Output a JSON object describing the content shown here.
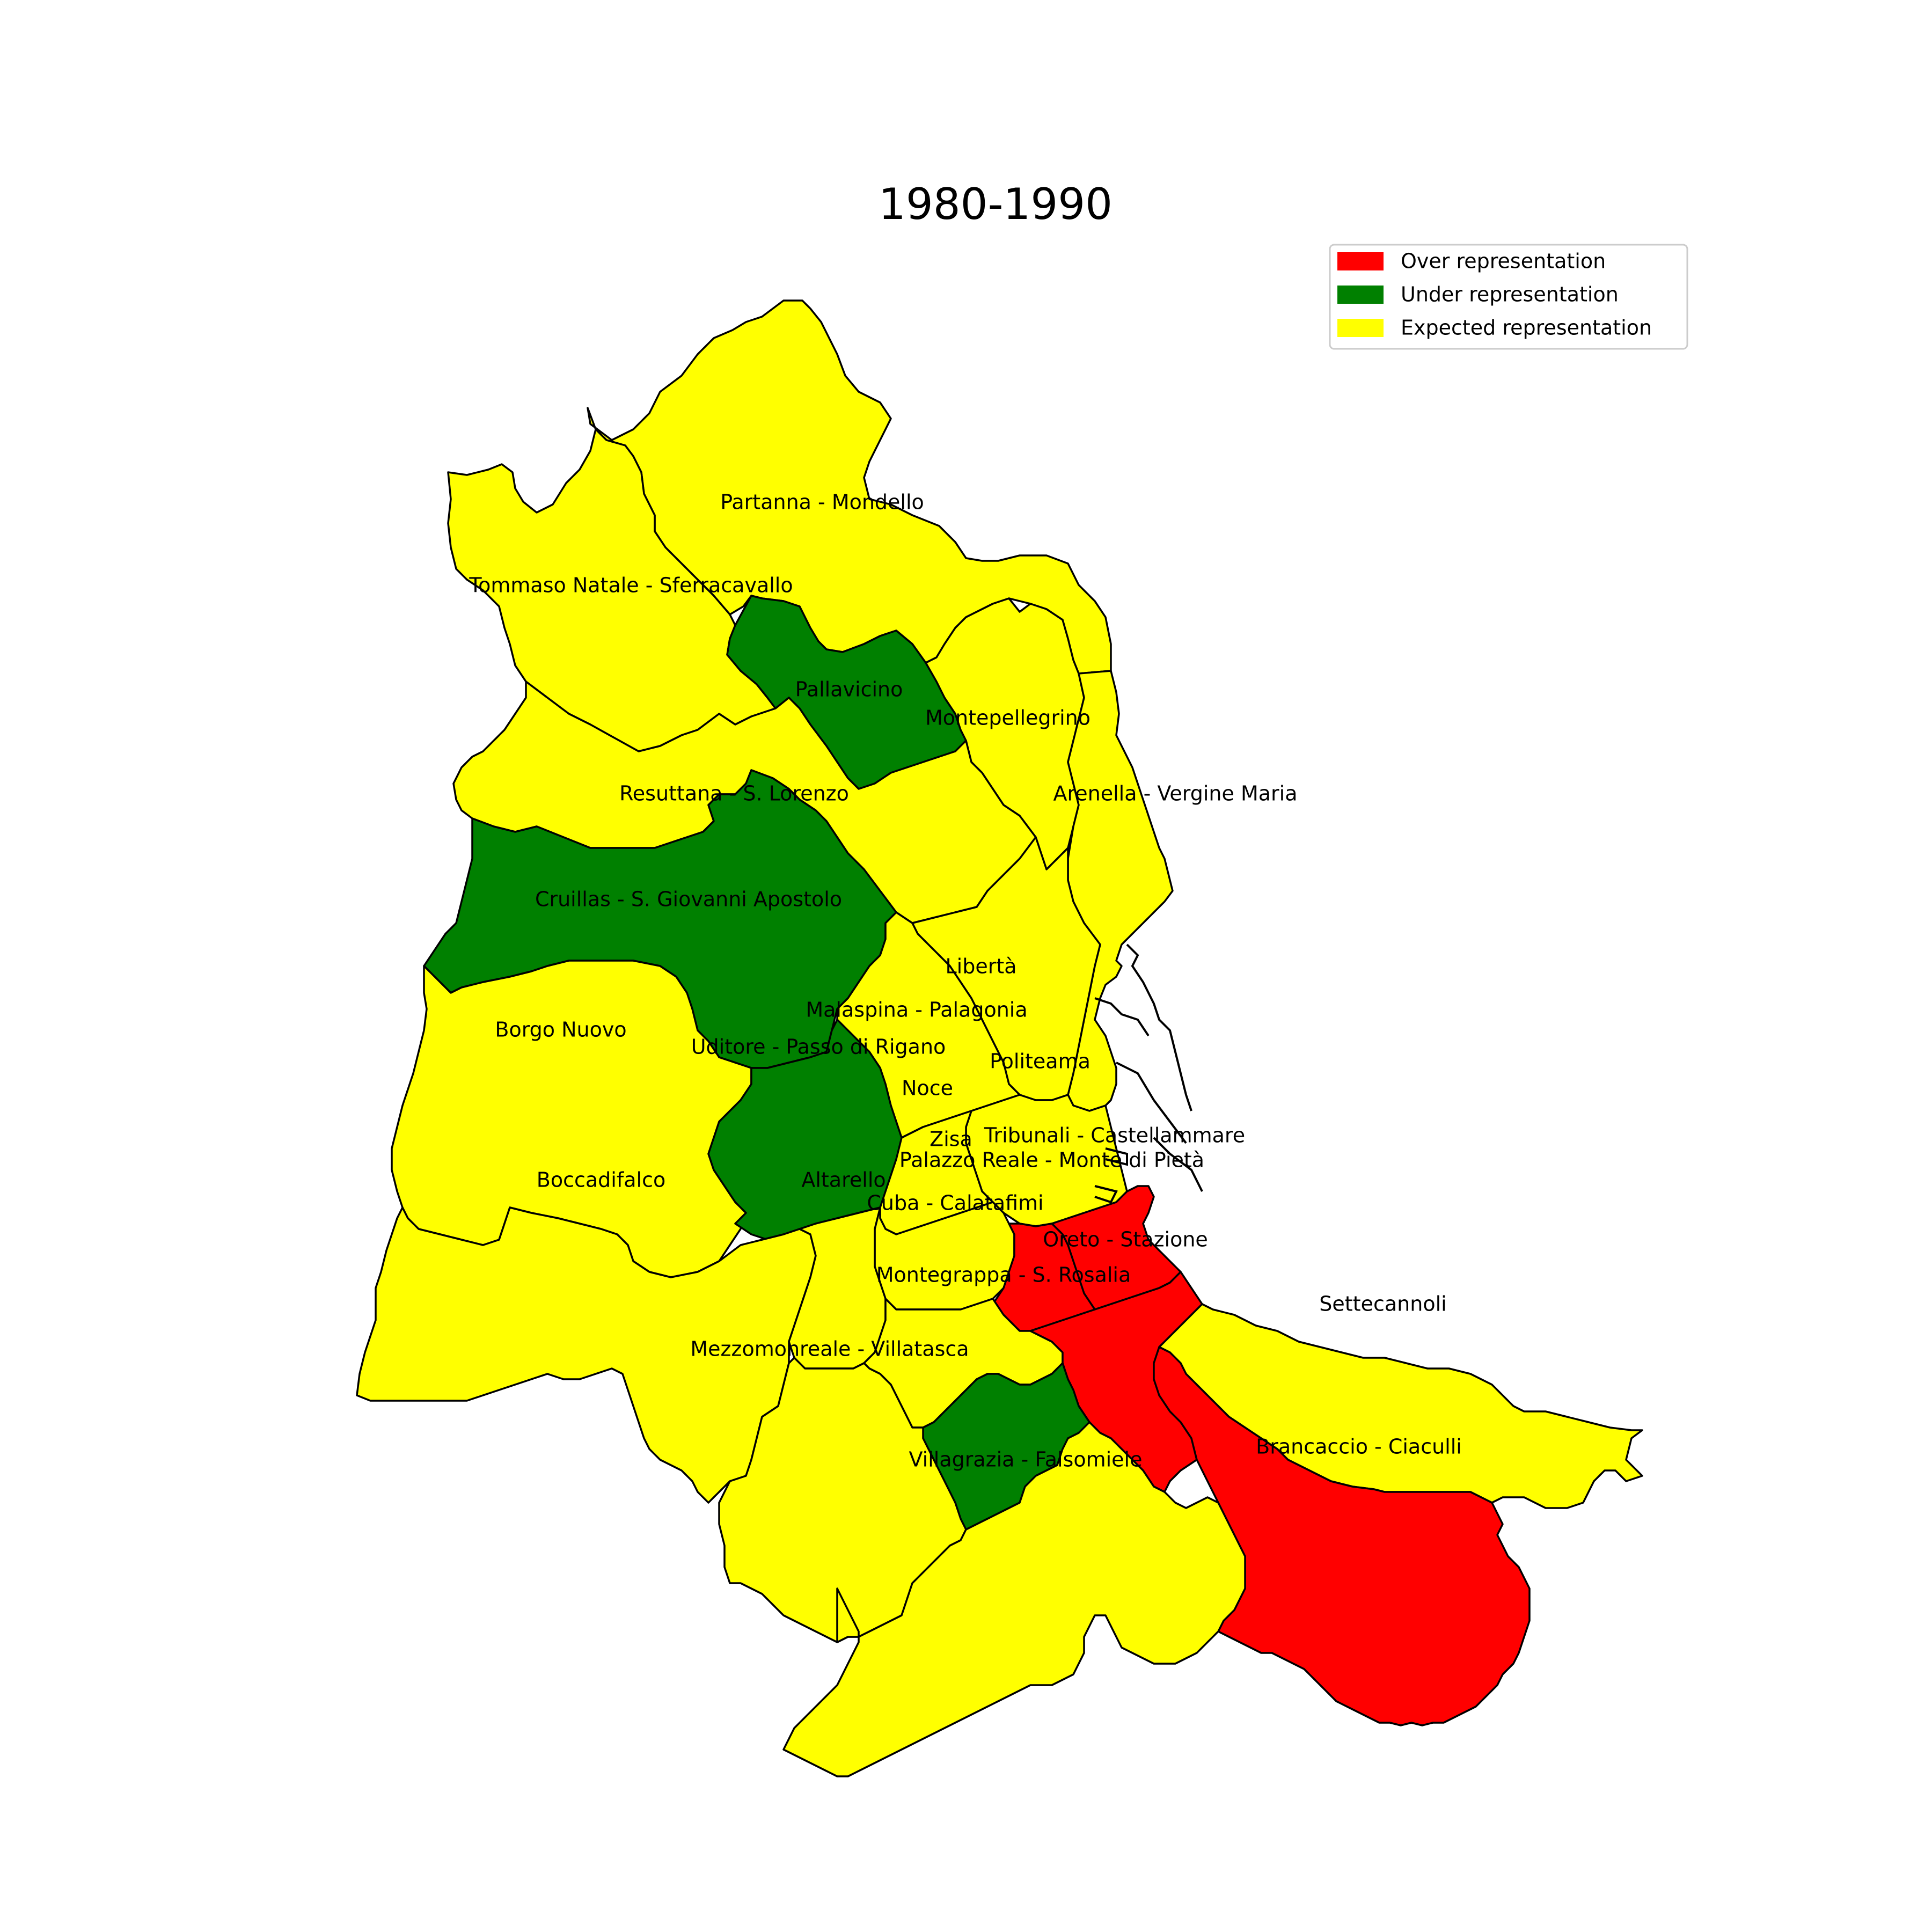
{
  "title": "1980-1990",
  "colors": {
    "over": "#ff0000",
    "under": "#008000",
    "expected": "#ffff00",
    "outline": "#000000"
  },
  "legend": [
    {
      "label": "Over representation",
      "category": "over",
      "color": "#ff0000"
    },
    {
      "label": "Under representation",
      "category": "under",
      "color": "#008000"
    },
    {
      "label": "Expected representation",
      "category": "expected",
      "color": "#ffff00"
    }
  ],
  "districts": [
    {
      "name": "Partanna - Mondello",
      "category": "expected"
    },
    {
      "name": "Tommaso Natale - Sferracavallo",
      "category": "expected"
    },
    {
      "name": "Pallavicino",
      "category": "under"
    },
    {
      "name": "Montepellegrino",
      "category": "expected"
    },
    {
      "name": "Resuttana - S. Lorenzo",
      "category": "expected"
    },
    {
      "name": "Arenella - Vergine Maria",
      "category": "expected"
    },
    {
      "name": "Cruillas - S. Giovanni Apostolo",
      "category": "under"
    },
    {
      "name": "Libertà",
      "category": "expected"
    },
    {
      "name": "Borgo Nuovo",
      "category": "expected"
    },
    {
      "name": "Malaspina - Palagonia",
      "category": "expected"
    },
    {
      "name": "Uditore - Passo di Rigano",
      "category": "under"
    },
    {
      "name": "Politeama",
      "category": "expected"
    },
    {
      "name": "Noce",
      "category": "expected"
    },
    {
      "name": "Zisa",
      "category": "expected"
    },
    {
      "name": "Tribunali - Castellammare",
      "category": "over"
    },
    {
      "name": "Palazzo Reale - Monte di Pietà",
      "category": "over"
    },
    {
      "name": "Boccadifalco",
      "category": "expected"
    },
    {
      "name": "Altarello",
      "category": "expected"
    },
    {
      "name": "Cuba - Calatafimi",
      "category": "expected"
    },
    {
      "name": "Oreto - Stazione",
      "category": "over"
    },
    {
      "name": "Montegrappa - S. Rosalia",
      "category": "under"
    },
    {
      "name": "Settecannoli",
      "category": "expected"
    },
    {
      "name": "Mezzomonreale - Villatasca",
      "category": "expected"
    },
    {
      "name": "Brancaccio - Ciaculli",
      "category": "over"
    },
    {
      "name": "Villagrazia - Falsomiele",
      "category": "expected"
    }
  ]
}
